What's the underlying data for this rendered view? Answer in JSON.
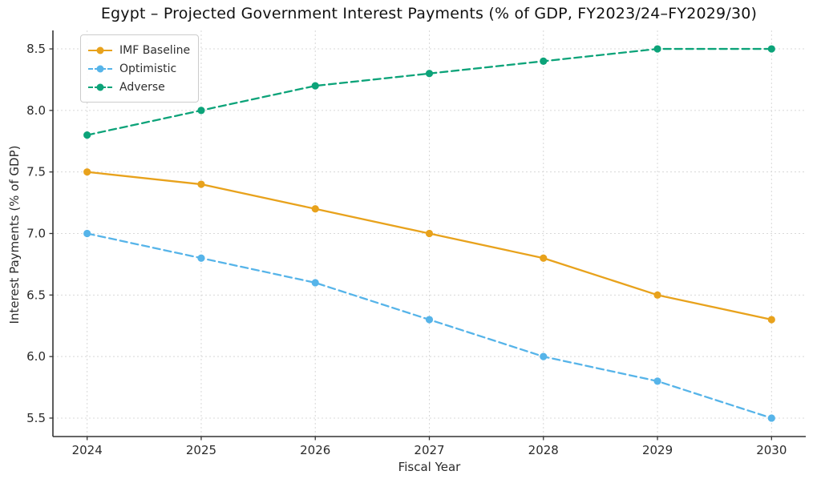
{
  "chart_data": {
    "type": "line",
    "title": "Egypt – Projected Government Interest Payments (% of GDP, FY2023/24–FY2029/30)",
    "xlabel": "Fiscal Year",
    "ylabel": "Interest Payments (% of GDP)",
    "x": [
      2024,
      2025,
      2026,
      2027,
      2028,
      2029,
      2030
    ],
    "xlim": [
      2023.7,
      2030.3
    ],
    "ylim": [
      5.35,
      8.65
    ],
    "yticks": [
      5.5,
      6.0,
      6.5,
      7.0,
      7.5,
      8.0,
      8.5
    ],
    "grid": true,
    "legend_position": "upper left",
    "series": [
      {
        "name": "IMF Baseline",
        "color": "#E8A21C",
        "style": "solid",
        "values": [
          7.5,
          7.4,
          7.2,
          7.0,
          6.8,
          6.5,
          6.3
        ]
      },
      {
        "name": "Optimistic",
        "color": "#56B4E9",
        "style": "dashed",
        "values": [
          7.0,
          6.8,
          6.6,
          6.3,
          6.0,
          5.8,
          5.5
        ]
      },
      {
        "name": "Adverse",
        "color": "#0CA379",
        "style": "dashed",
        "values": [
          7.8,
          8.0,
          8.2,
          8.3,
          8.4,
          8.5,
          8.5
        ]
      }
    ],
    "style_colors": {
      "spine": "#333333",
      "grid": "#d8d8d8",
      "tick_label": "#2b2b2b"
    }
  }
}
